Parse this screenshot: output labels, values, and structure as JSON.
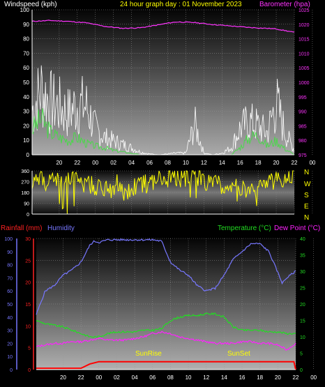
{
  "header": {
    "title": "24 hour graph day : 01 November 2023",
    "left_label": "Windspeed (kph)",
    "right_label": "Barometer (hpa)"
  },
  "direction": {
    "compass": [
      "N",
      "W",
      "S",
      "E",
      "N"
    ]
  },
  "lower_header": {
    "rainfall_label": "Rainfall (mm)",
    "humidity_label": "Humidity",
    "temperature_label": "Temperature (°C)",
    "dewpoint_label": "Dew Point (°C)"
  },
  "annotations": {
    "sunrise": "SunRise",
    "sunset": "SunSet"
  },
  "colors": {
    "wind": "#ffffff",
    "gust_avg": "#44dd44",
    "barometer": "#ff33ff",
    "direction": "#ffff00",
    "rain": "#ff0000",
    "humidity": "#7777ff",
    "temperature": "#22dd22",
    "dewpoint": "#ff22ff",
    "text_white": "#ffffff",
    "text_yellow": "#ffff00"
  },
  "chart_data": [
    {
      "type": "line",
      "name_hint": "wind",
      "x_ticks": [
        "20",
        "22",
        "00",
        "02",
        "04",
        "06",
        "08",
        "10",
        "12",
        "14",
        "16",
        "18",
        "20",
        "22",
        "00"
      ],
      "y_left_ticks": [
        0,
        10,
        20,
        30,
        40,
        50,
        60,
        70,
        80,
        90,
        100
      ],
      "y_left_range": [
        0,
        100
      ],
      "y_right_ticks": [
        975,
        980,
        985,
        990,
        995,
        1000,
        1005,
        1010,
        1015,
        1020,
        1025
      ],
      "y_right_range": [
        975,
        1025
      ],
      "x_range_hours": [
        0,
        29
      ],
      "series": [
        {
          "key": "barometer",
          "x": [
            0,
            2,
            4,
            6,
            8,
            10,
            12,
            14,
            15,
            16,
            18,
            20,
            22,
            24,
            26,
            27,
            28,
            29
          ],
          "values": [
            1021,
            1021.3,
            1021,
            1020.5,
            1019.3,
            1018.6,
            1018.8,
            1019.8,
            1020.4,
            1020.8,
            1020.6,
            1019.9,
            1019.4,
            1018.9,
            1018.6,
            1018.4,
            1017.8,
            1017.2
          ]
        },
        {
          "key": "wind_gust_envelope",
          "x": [
            0,
            1,
            2,
            3,
            4,
            5,
            6,
            7,
            8,
            9,
            10,
            11,
            12,
            13,
            14,
            15,
            16,
            17,
            18,
            19,
            20,
            21,
            22,
            23,
            24,
            25,
            26,
            27,
            28,
            29
          ],
          "values": [
            50,
            75,
            60,
            55,
            48,
            58,
            55,
            30,
            20,
            16,
            12,
            8,
            3,
            1,
            0,
            1,
            2,
            2,
            35,
            2,
            0,
            2,
            8,
            30,
            38,
            33,
            25,
            60,
            25,
            5
          ]
        },
        {
          "key": "wind_avg",
          "x": [
            0,
            1,
            2,
            3,
            4,
            5,
            6,
            7,
            8,
            9,
            10,
            11,
            12,
            13,
            14,
            15,
            16,
            17,
            18,
            19,
            20,
            21,
            22,
            23,
            24,
            25,
            26,
            27,
            28,
            29
          ],
          "values": [
            18,
            25,
            16,
            12,
            10,
            12,
            8,
            6,
            5,
            3,
            2,
            1,
            0,
            0,
            0,
            0,
            0,
            0,
            0,
            0,
            0,
            0,
            0,
            5,
            12,
            14,
            6,
            10,
            4,
            0
          ]
        }
      ]
    },
    {
      "type": "line",
      "name_hint": "wind direction",
      "x_ticks": [
        "20",
        "22",
        "00",
        "02",
        "04",
        "06",
        "08",
        "10",
        "12",
        "14",
        "16",
        "18",
        "20",
        "22",
        "00"
      ],
      "y_ticks": [
        0,
        90,
        180,
        270,
        360
      ],
      "y_range": [
        0,
        360
      ],
      "series": [
        {
          "key": "direction",
          "x": [
            0,
            2,
            4,
            6,
            8,
            10,
            12,
            14,
            16,
            18,
            20,
            22,
            24,
            26,
            28,
            29
          ],
          "values": [
            280,
            270,
            300,
            250,
            220,
            180,
            240,
            290,
            300,
            310,
            250,
            230,
            200,
            260,
            290,
            300
          ]
        }
      ]
    },
    {
      "type": "line",
      "name_hint": "rain humidity temperature",
      "x_ticks": [
        "20",
        "22",
        "00",
        "02",
        "04",
        "06",
        "08",
        "10",
        "12",
        "14",
        "16",
        "18",
        "20",
        "22",
        "00"
      ],
      "humidity_ticks": [
        0,
        10,
        20,
        30,
        40,
        50,
        60,
        70,
        80,
        90,
        100
      ],
      "humidity_range": [
        0,
        100
      ],
      "rain_ticks": [
        0,
        5,
        10,
        15,
        20,
        25,
        30
      ],
      "rain_range": [
        0,
        30
      ],
      "temp_ticks": [
        0,
        5,
        10,
        15,
        20,
        25,
        30,
        35,
        40
      ],
      "temp_range": [
        0,
        40
      ],
      "series": [
        {
          "key": "humidity",
          "x": [
            0,
            1,
            2,
            3,
            4,
            5,
            6,
            6.5,
            7,
            8,
            9,
            10,
            11,
            12,
            13,
            14,
            15,
            16,
            17,
            18,
            19,
            20,
            21,
            22,
            23,
            24,
            25,
            26,
            27,
            27.5,
            28,
            29
          ],
          "values": [
            42,
            60,
            64,
            72,
            76,
            82,
            95,
            98,
            97,
            99,
            99,
            99,
            99,
            99,
            99,
            98,
            82,
            76,
            72,
            64,
            60,
            62,
            72,
            84,
            90,
            96,
            96,
            90,
            74,
            66,
            70,
            75
          ]
        },
        {
          "key": "temperature",
          "x": [
            0,
            1,
            2,
            3,
            4,
            5,
            6,
            7,
            8,
            9,
            10,
            11,
            12,
            13,
            14,
            15,
            16,
            17,
            18,
            19,
            20,
            21,
            22,
            23,
            24,
            25,
            26,
            27,
            28,
            29
          ],
          "values": [
            15,
            14,
            13.5,
            13,
            12,
            11,
            10,
            10,
            11,
            11.5,
            11.5,
            11.5,
            12,
            12,
            12.5,
            15,
            16,
            16.5,
            16.5,
            17,
            17,
            16,
            13,
            12,
            12,
            12,
            11.5,
            11.5,
            11,
            11
          ]
        },
        {
          "key": "dewpoint",
          "x": [
            0,
            1,
            2,
            3,
            4,
            5,
            6,
            7,
            8,
            9,
            10,
            11,
            12,
            13,
            14,
            15,
            16,
            17,
            18,
            19,
            20,
            21,
            22,
            23,
            24,
            25,
            26,
            27,
            28,
            29
          ],
          "values": [
            7,
            7.5,
            8,
            8,
            8.5,
            8.5,
            9,
            9.5,
            9,
            9,
            9,
            9.5,
            10,
            11,
            11.5,
            11,
            10,
            9.5,
            9,
            8.5,
            8,
            8,
            8,
            8.5,
            8.5,
            8,
            8,
            7.5,
            6,
            8
          ]
        },
        {
          "key": "rain",
          "x": [
            0,
            5,
            5.5,
            6,
            7,
            9,
            15,
            20,
            25,
            28,
            28.8,
            29
          ],
          "values": [
            0.3,
            0.3,
            0.8,
            1.3,
            1.8,
            1.8,
            1.8,
            1.8,
            1.8,
            1.8,
            1.8,
            0
          ]
        }
      ]
    }
  ]
}
